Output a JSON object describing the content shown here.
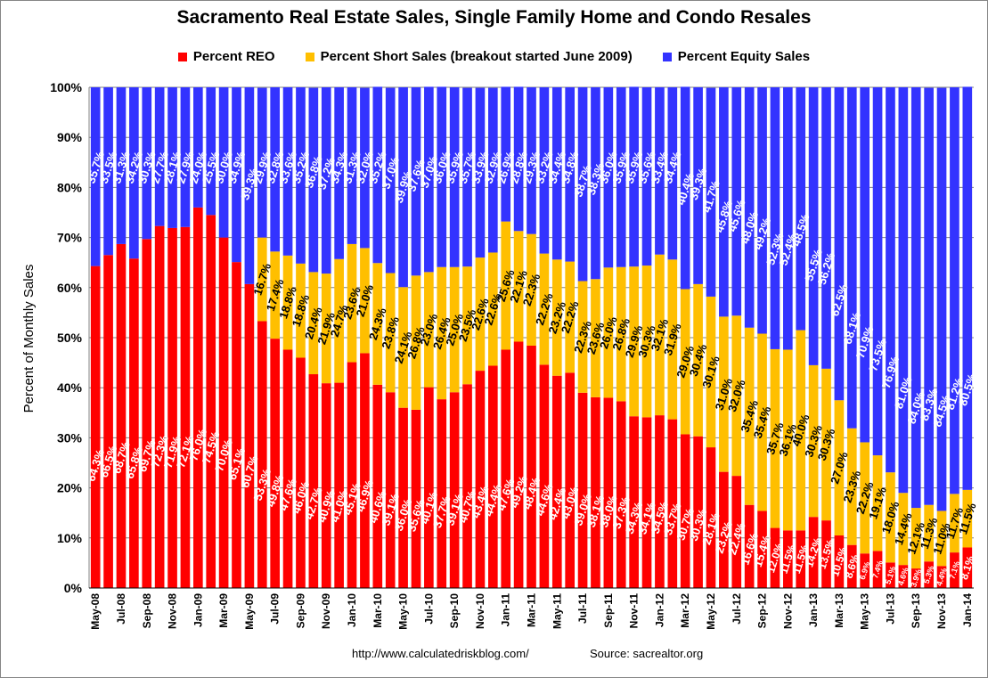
{
  "chart_data": {
    "type": "bar",
    "stacked": true,
    "title": "Sacramento Real Estate Sales, Single Family Home and Condo Resales",
    "ylabel": "Percent of Monthly Sales",
    "xlabel": "",
    "ylim": [
      0,
      100
    ],
    "yticks": [
      "0%",
      "10%",
      "20%",
      "30%",
      "40%",
      "50%",
      "60%",
      "70%",
      "80%",
      "90%",
      "100%"
    ],
    "grid": true,
    "legend_position": "top",
    "colors": {
      "reo": "#ff0000",
      "short": "#ffbf00",
      "equity": "#3333ff"
    },
    "categories": [
      "May-08",
      "Jun-08",
      "Jul-08",
      "Aug-08",
      "Sep-08",
      "Oct-08",
      "Nov-08",
      "Dec-08",
      "Jan-09",
      "Feb-09",
      "Mar-09",
      "Apr-09",
      "May-09",
      "Jun-09",
      "Jul-09",
      "Aug-09",
      "Sep-09",
      "Oct-09",
      "Nov-09",
      "Dec-09",
      "Jan-10",
      "Feb-10",
      "Mar-10",
      "Apr-10",
      "May-10",
      "Jun-10",
      "Jul-10",
      "Aug-10",
      "Sep-10",
      "Oct-10",
      "Nov-10",
      "Dec-10",
      "Jan-11",
      "Feb-11",
      "Mar-11",
      "Apr-11",
      "May-11",
      "Jun-11",
      "Jul-11",
      "Aug-11",
      "Sep-11",
      "Oct-11",
      "Nov-11",
      "Dec-11",
      "Jan-12",
      "Feb-12",
      "Mar-12",
      "Apr-12",
      "May-12",
      "Jun-12",
      "Jul-12",
      "Aug-12",
      "Sep-12",
      "Oct-12",
      "Nov-12",
      "Dec-12",
      "Jan-13",
      "Feb-13",
      "Mar-13",
      "Apr-13",
      "May-13",
      "Jun-13",
      "Jul-13",
      "Aug-13",
      "Sep-13",
      "Oct-13",
      "Nov-13",
      "Dec-13",
      "Jan-14"
    ],
    "series": [
      {
        "name": "Percent REO",
        "values": [
          64.3,
          66.5,
          68.7,
          65.8,
          69.7,
          72.3,
          71.9,
          72.1,
          76.0,
          74.5,
          70.0,
          65.1,
          60.7,
          53.3,
          49.8,
          47.6,
          46.0,
          42.7,
          40.9,
          41.0,
          45.1,
          46.9,
          40.6,
          39.1,
          36.0,
          35.6,
          40.1,
          37.7,
          39.1,
          40.7,
          43.4,
          44.4,
          47.6,
          49.2,
          48.4,
          44.6,
          42.4,
          43.0,
          39.0,
          38.1,
          38.0,
          37.3,
          34.3,
          34.1,
          34.5,
          33.7,
          30.7,
          30.3,
          28.1,
          23.2,
          22.4,
          16.6,
          15.4,
          12.0,
          11.5,
          11.5,
          14.2,
          13.5,
          10.5,
          8.6,
          6.9,
          7.4,
          5.1,
          4.6,
          3.9,
          5.3,
          4.4,
          7.1,
          8.1
        ]
      },
      {
        "name": "Percent Short Sales (breakout started June 2009)",
        "values": [
          0,
          0,
          0,
          0,
          0,
          0,
          0,
          0,
          0,
          0,
          0,
          0,
          0,
          16.7,
          17.4,
          18.8,
          18.8,
          20.4,
          21.9,
          24.7,
          23.6,
          21.0,
          24.3,
          23.8,
          24.1,
          26.8,
          23.0,
          26.4,
          25.0,
          23.5,
          22.6,
          22.6,
          25.6,
          22.1,
          22.3,
          22.2,
          23.2,
          22.2,
          22.3,
          23.6,
          26.0,
          26.8,
          29.9,
          30.3,
          32.1,
          31.9,
          29.0,
          30.4,
          30.1,
          31.0,
          32.0,
          35.4,
          35.4,
          35.7,
          36.1,
          40.0,
          30.3,
          30.3,
          27.0,
          23.3,
          22.2,
          19.1,
          18.0,
          14.4,
          12.1,
          11.3,
          11.0,
          11.7,
          11.5
        ]
      },
      {
        "name": "Percent Equity Sales",
        "values": [
          35.7,
          33.5,
          31.3,
          34.2,
          30.3,
          27.7,
          28.1,
          27.9,
          24.0,
          25.5,
          30.0,
          34.9,
          39.3,
          29.9,
          32.8,
          33.6,
          35.2,
          36.8,
          37.2,
          34.3,
          31.3,
          32.0,
          35.2,
          37.0,
          39.9,
          37.6,
          37.0,
          36.0,
          35.9,
          35.7,
          33.9,
          32.9,
          26.9,
          28.8,
          29.3,
          33.2,
          34.4,
          34.8,
          38.7,
          38.3,
          36.0,
          35.9,
          35.9,
          35.6,
          33.4,
          34.4,
          40.4,
          39.3,
          41.7,
          45.8,
          45.6,
          48.0,
          49.2,
          52.3,
          52.4,
          48.5,
          55.5,
          56.2,
          62.5,
          68.1,
          70.9,
          73.5,
          76.9,
          81.0,
          84.0,
          83.3,
          84.5,
          81.2,
          80.5
        ]
      }
    ],
    "labels": {
      "reo": [
        "64.3%",
        "66.5%",
        "68.7%",
        "65.8%",
        "69.7%",
        "72.3%",
        "71.9%",
        "72.1%",
        "76.0%",
        "74.5%",
        "70.0%",
        "65.1%",
        "60.7%",
        "53.3%",
        "49.8%",
        "47.6%",
        "46.0%",
        "42.7%",
        "40.9%",
        "41.0%",
        "45.1%",
        "46.9%",
        "40.6%",
        "39.1%",
        "36.0%",
        "35.6%",
        "40.1%",
        "37.7%",
        "39.1%",
        "40.7%",
        "43.4%",
        "44.4%",
        "47.6%",
        "49.2%",
        "48.4%",
        "44.6%",
        "42.4%",
        "43.0%",
        "39.0%",
        "38.1%",
        "38.0%",
        "37.3%",
        "34.3%",
        "34.1%",
        "34.5%",
        "33.7%",
        "30.7%",
        "30.3%",
        "28.1%",
        "23.2%",
        "22.4%",
        "16.6%",
        "15.4%",
        "12.0%",
        "11.5%",
        "11.5%",
        "14.2%",
        "13.5%",
        "10.5%",
        "8.6%",
        "6.9%",
        "7.4%",
        "5.1%",
        "4.6%",
        "3.9%",
        "5.3%",
        "4.4%",
        "7.1%",
        "8.1%"
      ],
      "short": [
        "",
        "",
        "",
        "",
        "",
        "",
        "",
        "",
        "",
        "",
        "",
        "",
        "",
        "16.7%",
        "17.4%",
        "18.8%",
        "18.8%",
        "20.4%",
        "21.9%",
        "24.7%",
        "23.6%",
        "21.0%",
        "24.3%",
        "23.8%",
        "24.1%",
        "26.8%",
        "23.0%",
        "26.4%",
        "25.0%",
        "23.5%",
        "22.6%",
        "22.6%",
        "25.6%",
        "22.1%",
        "22.3%",
        "22.2%",
        "23.2%",
        "22.2%",
        "22.3%",
        "23.6%",
        "26.0%",
        "26.8%",
        "29.9%",
        "30.3%",
        "32.1%",
        "31.9%",
        "29.0%",
        "30.4%",
        "30.1%",
        "31.0%",
        "32.0%",
        "35.4%",
        "35.4%",
        "35.7%",
        "36.1%",
        "40.0%",
        "30.3%",
        "30.3%",
        "27.0%",
        "23.3%",
        "22.2%",
        "19.1%",
        "18.0%",
        "14.4%",
        "12.1%",
        "11.3%",
        "11.0%",
        "11.7%",
        "11.5%"
      ],
      "equity": [
        "35.7%",
        "33.5%",
        "31.3%",
        "34.2%",
        "30.3%",
        "27.7%",
        "28.1%",
        "27.9%",
        "24.0%",
        "25.5%",
        "30.0%",
        "34.9%",
        "39.3%",
        "29.9%",
        "32.8%",
        "33.6%",
        "35.2%",
        "36.8%",
        "37.2%",
        "34.3%",
        "31.3%",
        "32.0%",
        "35.2%",
        "37.0%",
        "39.9%",
        "37.6%",
        "37.0%",
        "36.0%",
        "35.9%",
        "35.7%",
        "33.9%",
        "32.9%",
        "26.9%",
        "28.8%",
        "29.3%",
        "33.2%",
        "34.4%",
        "34.8%",
        "38.7%",
        "38.3%",
        "36.0%",
        "35.9%",
        "35.9%",
        "35.6%",
        "33.4%",
        "34.4%",
        "40.4%",
        "39.3%",
        "41.7%",
        "45.8%",
        "45.6%",
        "48.0%",
        "49.2%",
        "52.3%",
        "52.4%",
        "48.5%",
        "55.5%",
        "56.2%",
        "62.5%",
        "68.1%",
        "70.9%",
        "73.5%",
        "76.9%",
        "81.0%",
        "84.0%",
        "83.3%",
        "84.5%",
        "81.2%",
        "80.5%"
      ]
    }
  },
  "legend": [
    {
      "label": "Percent REO",
      "color": "#ff0000"
    },
    {
      "label": "Percent Short Sales (breakout started June 2009)",
      "color": "#ffbf00"
    },
    {
      "label": "Percent Equity Sales",
      "color": "#3333ff"
    }
  ],
  "footer": {
    "url": "http://www.calculatedriskblog.com/",
    "source": "Source:  sacrealtor.org"
  }
}
